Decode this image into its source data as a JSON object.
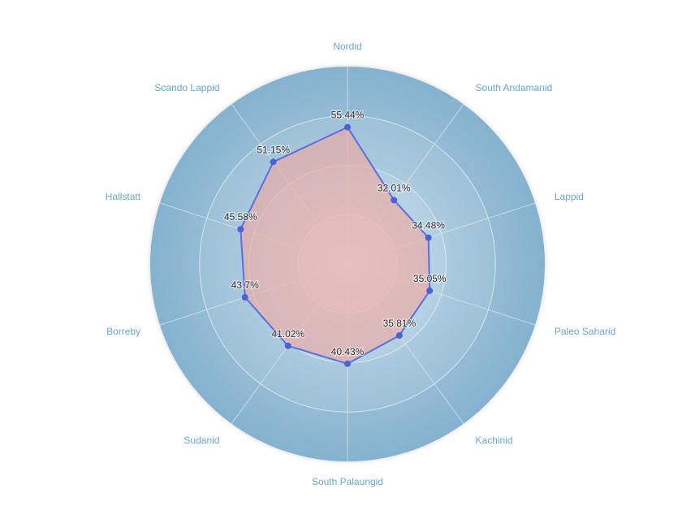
{
  "chart_data": {
    "type": "radar",
    "categories": [
      "Nordid",
      "South Andamanid",
      "Lappid",
      "Paleo Saharid",
      "Kachinid",
      "South Palaungid",
      "Sudanid",
      "Borreby",
      "Hallstatt",
      "Scando Lappid"
    ],
    "series": [
      {
        "values": [
          55.44,
          32.01,
          34.48,
          35.05,
          35.81,
          40.43,
          41.02,
          43.7,
          45.58,
          51.15
        ],
        "labels": [
          "55.44%",
          "32.01%",
          "34.48%",
          "35.05%",
          "35.81%",
          "40.43%",
          "41.02%",
          "43.7%",
          "45.58%",
          "51.15%"
        ]
      }
    ],
    "rlim": [
      0,
      80
    ],
    "ring_step": 20,
    "grid": true,
    "colors": {
      "background": "#85b2cf",
      "grid_line": "#dbe6ee",
      "series_line": "#5b6fdd",
      "series_point": "#4a62d8",
      "series_fill": "#f0a8a0",
      "axis_label": "#6aa6cf"
    }
  }
}
